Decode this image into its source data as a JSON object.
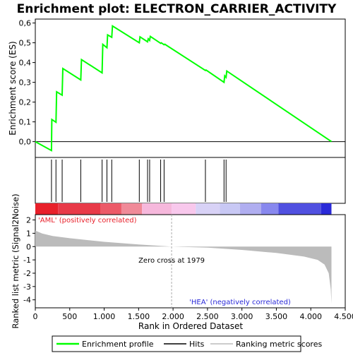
{
  "chart_data": {
    "type": "line",
    "title": "Enrichment plot: ELECTRON_CARRIER_ACTIVITY",
    "top_panel": {
      "ylabel": "Enrichment score (ES)",
      "ylim": [
        -0.08,
        0.62
      ],
      "yticks": [
        0.0,
        0.1,
        0.2,
        0.3,
        0.4,
        0.5,
        0.6
      ],
      "ytick_labels": [
        "0,0",
        "0,1",
        "0,2",
        "0,3",
        "0,4",
        "0,5",
        "0,6"
      ],
      "series": [
        {
          "name": "Enrichment profile",
          "color": "#00ff00",
          "points": [
            [
              0,
              0.0
            ],
            [
              235,
              -0.045
            ],
            [
              240,
              0.112
            ],
            [
              300,
              0.098
            ],
            [
              310,
              0.252
            ],
            [
              390,
              0.235
            ],
            [
              400,
              0.37
            ],
            [
              660,
              0.312
            ],
            [
              670,
              0.415
            ],
            [
              970,
              0.348
            ],
            [
              980,
              0.492
            ],
            [
              1040,
              0.475
            ],
            [
              1050,
              0.54
            ],
            [
              1110,
              0.528
            ],
            [
              1120,
              0.585
            ],
            [
              1510,
              0.5
            ],
            [
              1520,
              0.53
            ],
            [
              1630,
              0.505
            ],
            [
              1640,
              0.52
            ],
            [
              1660,
              0.512
            ],
            [
              1670,
              0.532
            ],
            [
              1820,
              0.497
            ],
            [
              1830,
              0.5
            ],
            [
              1870,
              0.49
            ],
            [
              1880,
              0.493
            ],
            [
              2470,
              0.36
            ],
            [
              2480,
              0.362
            ],
            [
              2740,
              0.3
            ],
            [
              2750,
              0.333
            ],
            [
              2770,
              0.325
            ],
            [
              2780,
              0.357
            ],
            [
              4300,
              0.0
            ]
          ]
        }
      ]
    },
    "hits": [
      235,
      300,
      390,
      660,
      970,
      1040,
      1110,
      1510,
      1630,
      1660,
      1820,
      1870,
      2470,
      2740,
      2770
    ],
    "bottom_panel": {
      "ylabel": "Ranked list metric (Signal2Noise)",
      "ylim": [
        -4.6,
        2.4
      ],
      "yticks": [
        2,
        1,
        0,
        -1,
        -2,
        -3,
        -4
      ],
      "ytick_labels": [
        "2",
        "1",
        "0",
        "-1",
        "-2",
        "-3",
        "-4"
      ],
      "metric_profile": [
        [
          0,
          1.2
        ],
        [
          100,
          0.98
        ],
        [
          250,
          0.8
        ],
        [
          500,
          0.63
        ],
        [
          1000,
          0.36
        ],
        [
          1500,
          0.16
        ],
        [
          1979,
          0.0
        ],
        [
          2500,
          -0.08
        ],
        [
          3000,
          -0.25
        ],
        [
          3500,
          -0.48
        ],
        [
          3900,
          -0.75
        ],
        [
          4100,
          -1.0
        ],
        [
          4200,
          -1.35
        ],
        [
          4260,
          -2.0
        ],
        [
          4290,
          -3.2
        ],
        [
          4300,
          -4.3
        ]
      ],
      "zero_cross_label": "Zero cross at 1979",
      "zero_cross_rank": 1979,
      "pos_label": "'AML' (positively correlated)",
      "neg_label": "'HEA' (negatively correlated)"
    },
    "xlabel": "Rank in Ordered Dataset",
    "xlim": [
      0,
      4500
    ],
    "xticks": [
      0,
      500,
      1000,
      1500,
      2000,
      2500,
      3000,
      3500,
      4000,
      4500
    ],
    "xtick_labels": [
      "0",
      "500",
      "1.000",
      "1.500",
      "2.000",
      "2.500",
      "3.000",
      "3.500",
      "4.000",
      "4.500"
    ],
    "n_genes": 4300,
    "color_bar": [
      {
        "from": 0,
        "to": 330,
        "color": "#e8202a"
      },
      {
        "from": 330,
        "to": 950,
        "color": "#e83a48"
      },
      {
        "from": 950,
        "to": 1250,
        "color": "#ec5a68"
      },
      {
        "from": 1250,
        "to": 1550,
        "color": "#f08a98"
      },
      {
        "from": 1550,
        "to": 1980,
        "color": "#f6b8dc"
      },
      {
        "from": 1980,
        "to": 2330,
        "color": "#f8c8ec"
      },
      {
        "from": 2330,
        "to": 2680,
        "color": "#d8d2f6"
      },
      {
        "from": 2680,
        "to": 2970,
        "color": "#c8c8f4"
      },
      {
        "from": 2970,
        "to": 3280,
        "color": "#b0aef0"
      },
      {
        "from": 3280,
        "to": 3530,
        "color": "#8888ee"
      },
      {
        "from": 3530,
        "to": 4150,
        "color": "#5050e0"
      },
      {
        "from": 4150,
        "to": 4300,
        "color": "#2a2ad8"
      }
    ],
    "legend": {
      "placement": "bottom",
      "entries": [
        {
          "label": "Enrichment profile",
          "color": "#00ff00"
        },
        {
          "label": "Hits",
          "color": "#000000"
        },
        {
          "label": "Ranking metric scores",
          "color": "#bbbbbb"
        }
      ]
    }
  }
}
